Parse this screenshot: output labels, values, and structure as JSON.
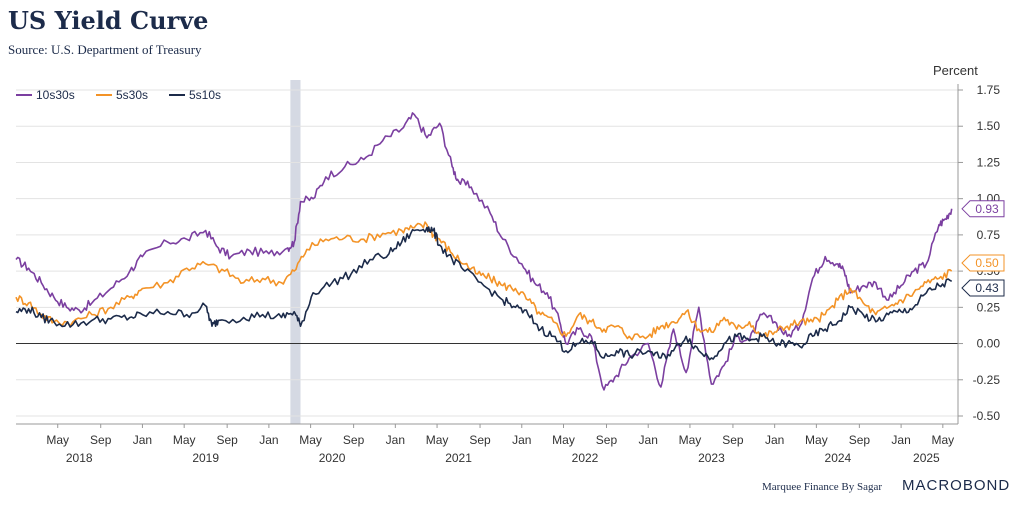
{
  "chart_data": {
    "type": "line",
    "title": "US Yield Curve",
    "subtitle": "Source: U.S. Department of Treasury",
    "ylabel": "Percent",
    "ylim": [
      -0.5,
      1.75
    ],
    "yticks": [
      "1.75",
      "1.50",
      "1.25",
      "1.00",
      "0.75",
      "0.50",
      "0.25",
      "0.00",
      "-0.25",
      "-0.50"
    ],
    "ytick_values": [
      1.75,
      1.5,
      1.25,
      1.0,
      0.75,
      0.5,
      0.25,
      0.0,
      -0.25,
      -0.5
    ],
    "x_start": 2018.0,
    "x_end": 2025.45,
    "month_ticks": [
      {
        "label": "May",
        "t": 2018.33
      },
      {
        "label": "Sep",
        "t": 2018.67
      },
      {
        "label": "Jan",
        "t": 2019.0
      },
      {
        "label": "May",
        "t": 2019.33
      },
      {
        "label": "Sep",
        "t": 2019.67
      },
      {
        "label": "Jan",
        "t": 2020.0
      },
      {
        "label": "May",
        "t": 2020.33
      },
      {
        "label": "Sep",
        "t": 2020.67
      },
      {
        "label": "Jan",
        "t": 2021.0
      },
      {
        "label": "May",
        "t": 2021.33
      },
      {
        "label": "Sep",
        "t": 2021.67
      },
      {
        "label": "Jan",
        "t": 2022.0
      },
      {
        "label": "May",
        "t": 2022.33
      },
      {
        "label": "Sep",
        "t": 2022.67
      },
      {
        "label": "Jan",
        "t": 2023.0
      },
      {
        "label": "May",
        "t": 2023.33
      },
      {
        "label": "Sep",
        "t": 2023.67
      },
      {
        "label": "Jan",
        "t": 2024.0
      },
      {
        "label": "May",
        "t": 2024.33
      },
      {
        "label": "Sep",
        "t": 2024.67
      },
      {
        "label": "Jan",
        "t": 2025.0
      },
      {
        "label": "May",
        "t": 2025.33
      }
    ],
    "year_ticks": [
      {
        "label": "2018",
        "t": 2018.5
      },
      {
        "label": "2019",
        "t": 2019.5
      },
      {
        "label": "2020",
        "t": 2020.5
      },
      {
        "label": "2021",
        "t": 2021.5
      },
      {
        "label": "2022",
        "t": 2022.5
      },
      {
        "label": "2023",
        "t": 2023.5
      },
      {
        "label": "2024",
        "t": 2024.5
      },
      {
        "label": "2025",
        "t": 2025.2
      }
    ],
    "recession_band": {
      "start": 2020.17,
      "end": 2020.25
    },
    "legend_position": "top-left",
    "series": [
      {
        "name": "10s30s",
        "color": "#7b3fa0",
        "last_label": "0.93",
        "x": [
          2018.0,
          2018.1,
          2018.2,
          2018.3,
          2018.4,
          2018.5,
          2018.6,
          2018.75,
          2018.9,
          2019.0,
          2019.2,
          2019.35,
          2019.5,
          2019.6,
          2019.7,
          2019.85,
          2020.0,
          2020.15,
          2020.2,
          2020.25,
          2020.35,
          2020.45,
          2020.6,
          2020.75,
          2020.9,
          2021.05,
          2021.15,
          2021.25,
          2021.35,
          2021.45,
          2021.5,
          2021.6,
          2021.75,
          2021.85,
          2022.0,
          2022.1,
          2022.2,
          2022.3,
          2022.35,
          2022.45,
          2022.55,
          2022.65,
          2022.75,
          2022.85,
          2023.0,
          2023.1,
          2023.2,
          2023.3,
          2023.4,
          2023.5,
          2023.6,
          2023.7,
          2023.8,
          2023.9,
          2024.0,
          2024.1,
          2024.2,
          2024.3,
          2024.4,
          2024.5,
          2024.55,
          2024.6,
          2024.7,
          2024.8,
          2024.9,
          2025.0,
          2025.1,
          2025.2,
          2025.3,
          2025.35,
          2025.4
        ],
        "y": [
          0.58,
          0.52,
          0.42,
          0.32,
          0.25,
          0.23,
          0.28,
          0.38,
          0.5,
          0.6,
          0.7,
          0.72,
          0.78,
          0.66,
          0.6,
          0.64,
          0.62,
          0.66,
          0.7,
          0.98,
          1.0,
          1.15,
          1.22,
          1.27,
          1.4,
          1.48,
          1.58,
          1.42,
          1.52,
          1.22,
          1.12,
          1.08,
          0.9,
          0.72,
          0.55,
          0.42,
          0.35,
          0.15,
          0.0,
          0.1,
          0.05,
          -0.32,
          -0.22,
          -0.1,
          0.0,
          -0.3,
          0.1,
          -0.2,
          0.25,
          -0.28,
          -0.15,
          0.05,
          0.02,
          0.2,
          0.15,
          0.05,
          0.12,
          0.45,
          0.6,
          0.55,
          0.5,
          0.35,
          0.4,
          0.42,
          0.3,
          0.4,
          0.5,
          0.55,
          0.82,
          0.86,
          0.93
        ]
      },
      {
        "name": "5s30s",
        "color": "#f39327",
        "last_label": "0.50",
        "x": [
          2018.0,
          2018.1,
          2018.2,
          2018.3,
          2018.45,
          2018.6,
          2018.75,
          2018.9,
          2019.0,
          2019.2,
          2019.35,
          2019.5,
          2019.65,
          2019.8,
          2019.95,
          2020.1,
          2020.2,
          2020.3,
          2020.45,
          2020.6,
          2020.75,
          2020.9,
          2021.05,
          2021.15,
          2021.25,
          2021.3,
          2021.35,
          2021.45,
          2021.55,
          2021.65,
          2021.75,
          2021.85,
          2021.95,
          2022.05,
          2022.15,
          2022.25,
          2022.35,
          2022.45,
          2022.55,
          2022.65,
          2022.75,
          2022.85,
          2023.0,
          2023.1,
          2023.2,
          2023.3,
          2023.4,
          2023.5,
          2023.6,
          2023.7,
          2023.8,
          2023.9,
          2024.0,
          2024.1,
          2024.2,
          2024.3,
          2024.4,
          2024.5,
          2024.6,
          2024.7,
          2024.8,
          2024.9,
          2025.0,
          2025.1,
          2025.2,
          2025.3,
          2025.4
        ],
        "y": [
          0.32,
          0.28,
          0.2,
          0.15,
          0.15,
          0.2,
          0.25,
          0.32,
          0.38,
          0.42,
          0.52,
          0.55,
          0.5,
          0.42,
          0.45,
          0.42,
          0.5,
          0.65,
          0.72,
          0.73,
          0.72,
          0.76,
          0.78,
          0.8,
          0.82,
          0.75,
          0.72,
          0.62,
          0.55,
          0.48,
          0.45,
          0.4,
          0.38,
          0.3,
          0.2,
          0.15,
          0.05,
          0.2,
          0.15,
          0.1,
          0.12,
          0.05,
          0.05,
          0.12,
          0.15,
          0.22,
          0.1,
          0.08,
          0.18,
          0.1,
          0.15,
          0.05,
          0.08,
          0.12,
          0.15,
          0.15,
          0.2,
          0.3,
          0.38,
          0.28,
          0.2,
          0.25,
          0.3,
          0.35,
          0.42,
          0.45,
          0.5
        ]
      },
      {
        "name": "5s10s",
        "color": "#1c2b4a",
        "last_label": "0.43",
        "x": [
          2018.0,
          2018.1,
          2018.2,
          2018.3,
          2018.45,
          2018.6,
          2018.75,
          2018.9,
          2019.0,
          2019.2,
          2019.35,
          2019.5,
          2019.55,
          2019.6,
          2019.8,
          2019.95,
          2020.1,
          2020.2,
          2020.25,
          2020.35,
          2020.5,
          2020.65,
          2020.8,
          2020.95,
          2021.05,
          2021.15,
          2021.25,
          2021.3,
          2021.35,
          2021.45,
          2021.55,
          2021.7,
          2021.85,
          2021.95,
          2022.05,
          2022.15,
          2022.25,
          2022.35,
          2022.45,
          2022.55,
          2022.65,
          2022.75,
          2022.85,
          2023.0,
          2023.1,
          2023.2,
          2023.3,
          2023.4,
          2023.5,
          2023.6,
          2023.7,
          2023.8,
          2023.9,
          2024.0,
          2024.1,
          2024.2,
          2024.3,
          2024.4,
          2024.5,
          2024.6,
          2024.7,
          2024.8,
          2024.9,
          2025.0,
          2025.1,
          2025.2,
          2025.3,
          2025.4
        ],
        "y": [
          0.22,
          0.24,
          0.18,
          0.15,
          0.13,
          0.16,
          0.17,
          0.18,
          0.2,
          0.22,
          0.2,
          0.26,
          0.12,
          0.16,
          0.18,
          0.2,
          0.18,
          0.22,
          0.12,
          0.35,
          0.42,
          0.48,
          0.58,
          0.62,
          0.7,
          0.78,
          0.8,
          0.78,
          0.68,
          0.58,
          0.5,
          0.4,
          0.3,
          0.25,
          0.2,
          0.1,
          0.05,
          -0.05,
          0.0,
          0.02,
          -0.1,
          -0.05,
          -0.08,
          -0.05,
          -0.1,
          -0.05,
          0.05,
          -0.05,
          -0.1,
          0.0,
          0.05,
          0.02,
          0.05,
          0.0,
          0.0,
          -0.02,
          0.05,
          0.1,
          0.15,
          0.25,
          0.2,
          0.15,
          0.2,
          0.22,
          0.25,
          0.35,
          0.4,
          0.43
        ]
      }
    ]
  },
  "footer": {
    "credit": "Marquee Finance By Sagar",
    "brand": "MACROBOND"
  }
}
